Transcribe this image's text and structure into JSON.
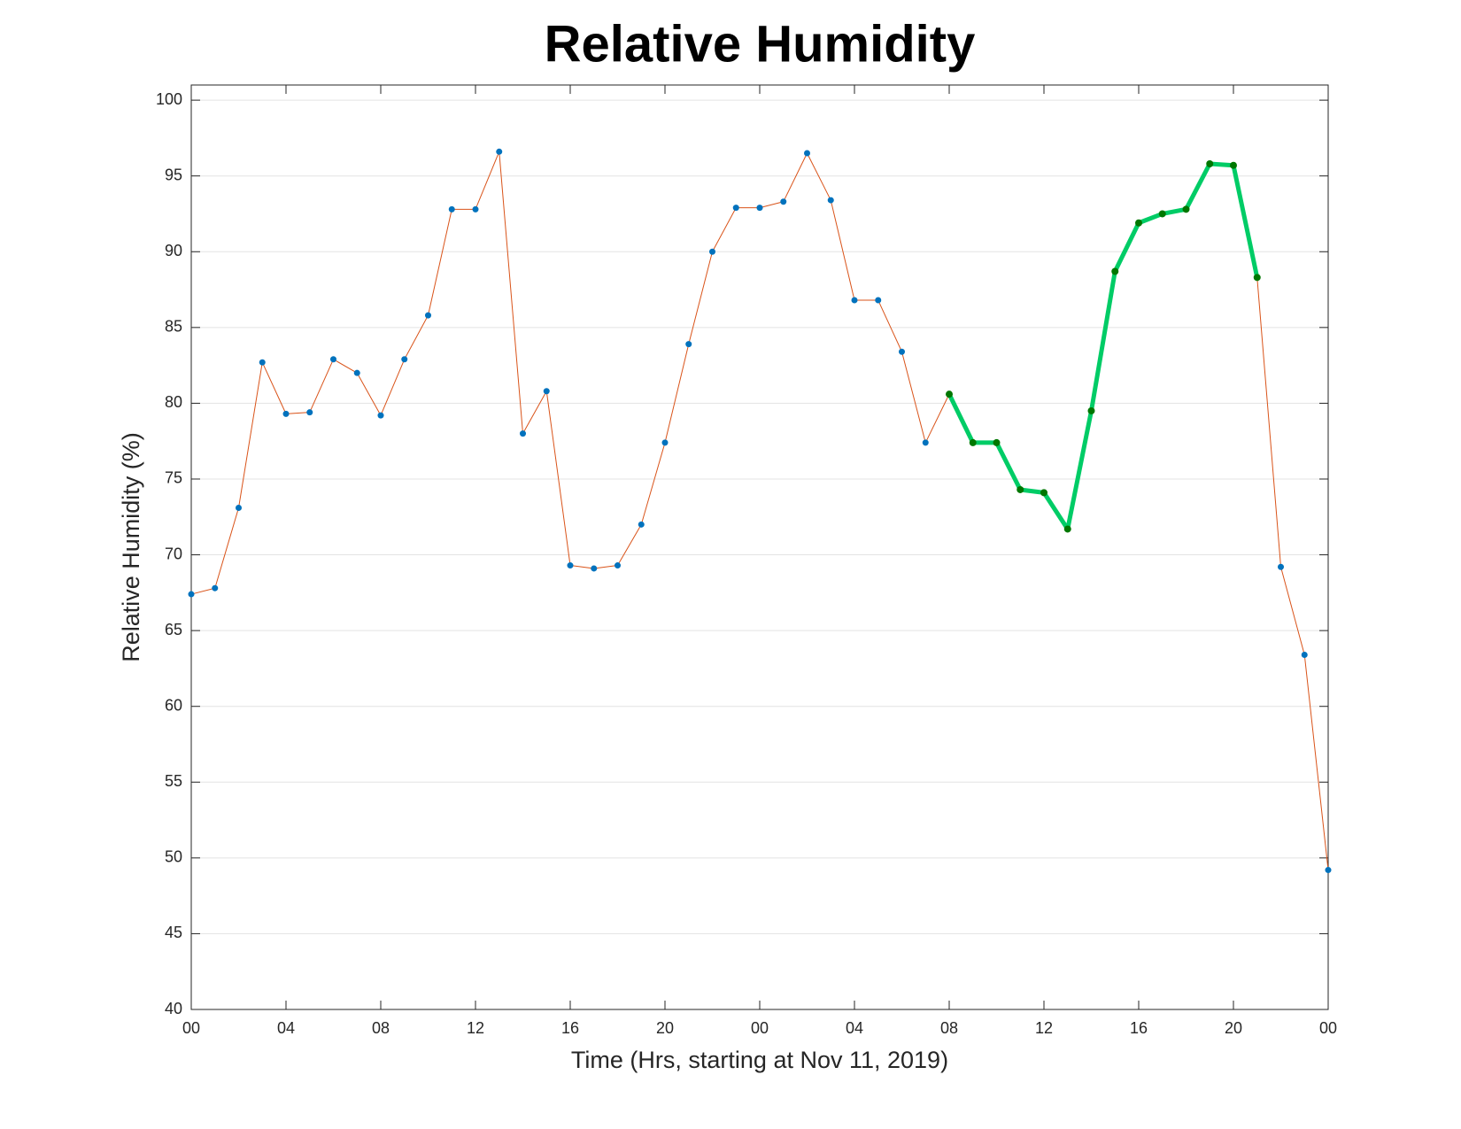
{
  "chart_data": {
    "type": "line",
    "title": "Relative Humidity",
    "xlabel": "Time (Hrs, starting at Nov 11, 2019)",
    "ylabel": "Relative Humidity (%)",
    "x": [
      0,
      1,
      2,
      3,
      4,
      5,
      6,
      7,
      8,
      9,
      10,
      11,
      12,
      13,
      14,
      15,
      16,
      17,
      18,
      19,
      20,
      21,
      22,
      23,
      24,
      25,
      26,
      27,
      28,
      29,
      30,
      31,
      32,
      33,
      34,
      35,
      36,
      37,
      38,
      39,
      40,
      41,
      42,
      43,
      44,
      45,
      46,
      47,
      48
    ],
    "series": [
      {
        "color": "#d95319",
        "marker_color": "#0072bd",
        "line_width": 1,
        "values": [
          67.4,
          67.8,
          73.1,
          82.7,
          79.3,
          79.4,
          82.9,
          82.0,
          79.2,
          82.9,
          85.8,
          92.8,
          92.8,
          96.6,
          78.0,
          80.8,
          69.3,
          69.1,
          69.3,
          72.0,
          77.4,
          83.9,
          90.0,
          92.9,
          92.9,
          93.3,
          96.5,
          93.4,
          86.8,
          86.8,
          83.4,
          77.4,
          80.6,
          77.4,
          77.4,
          74.3,
          74.1,
          71.7,
          79.5,
          88.7,
          91.9,
          92.5,
          92.8,
          95.8,
          95.7,
          88.3,
          69.2,
          63.4,
          49.2
        ]
      },
      {
        "color": "#00cc66",
        "marker_color": "#007700",
        "line_width": 5,
        "values": [
          null,
          null,
          null,
          null,
          null,
          null,
          null,
          null,
          null,
          null,
          null,
          null,
          null,
          null,
          null,
          null,
          null,
          null,
          null,
          null,
          null,
          null,
          null,
          null,
          null,
          null,
          null,
          null,
          null,
          null,
          null,
          null,
          80.6,
          77.4,
          77.4,
          74.3,
          74.1,
          71.7,
          79.5,
          88.7,
          91.9,
          92.5,
          92.8,
          95.8,
          95.7,
          88.3,
          null,
          null,
          null
        ]
      }
    ],
    "xlim": [
      0,
      48
    ],
    "xticks": [
      {
        "value": 0,
        "label": "00"
      },
      {
        "value": 4,
        "label": "04"
      },
      {
        "value": 8,
        "label": "08"
      },
      {
        "value": 12,
        "label": "12"
      },
      {
        "value": 16,
        "label": "16"
      },
      {
        "value": 20,
        "label": "20"
      },
      {
        "value": 24,
        "label": "00"
      },
      {
        "value": 28,
        "label": "04"
      },
      {
        "value": 32,
        "label": "08"
      },
      {
        "value": 36,
        "label": "12"
      },
      {
        "value": 40,
        "label": "16"
      },
      {
        "value": 44,
        "label": "20"
      },
      {
        "value": 48,
        "label": "00"
      }
    ],
    "ylim": [
      40,
      101
    ],
    "yticks": [
      40,
      45,
      50,
      55,
      60,
      65,
      70,
      75,
      80,
      85,
      90,
      95,
      100
    ],
    "grid": true
  }
}
